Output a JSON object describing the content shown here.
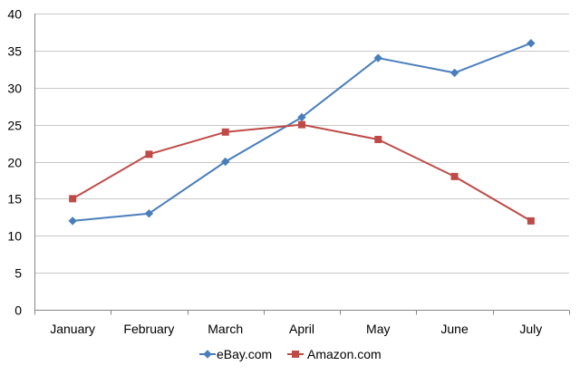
{
  "chart_data": {
    "type": "line",
    "title": "",
    "xlabel": "",
    "ylabel": "",
    "categories": [
      "January",
      "February",
      "March",
      "April",
      "May",
      "June",
      "July"
    ],
    "ylim": [
      0,
      40
    ],
    "yticks": [
      0,
      5,
      10,
      15,
      20,
      25,
      30,
      35,
      40
    ],
    "grid": true,
    "legend": "bottom",
    "series": [
      {
        "name": "eBay.com",
        "marker": "diamond",
        "color": "#4A7EBB",
        "values": [
          12,
          13,
          20,
          26,
          34,
          32,
          36
        ]
      },
      {
        "name": "Amazon.com",
        "marker": "square",
        "color": "#BE4B48",
        "values": [
          15,
          21,
          24,
          25,
          23,
          18,
          12
        ]
      }
    ]
  }
}
